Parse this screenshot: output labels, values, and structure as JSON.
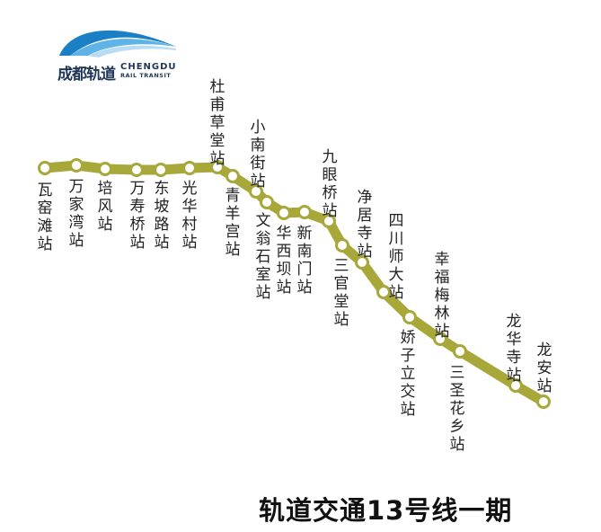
{
  "logo": {
    "cn": "成都轨道",
    "en_line1": "CHENGDU",
    "en_line2": "RAIL TRANSIT"
  },
  "colors": {
    "line": "#a8a83a",
    "station_fill": "#ffffff",
    "logo_blue": "#1a7fc4",
    "logo_text": "#1f3556"
  },
  "title": "轨道交通13号线一期",
  "stations": [
    {
      "name": "瓦窑滩站",
      "label_side": "below"
    },
    {
      "name": "万家湾站",
      "label_side": "below"
    },
    {
      "name": "培风站",
      "label_side": "below"
    },
    {
      "name": "万寿桥站",
      "label_side": "below"
    },
    {
      "name": "东坡路站",
      "label_side": "below"
    },
    {
      "name": "光华村站",
      "label_side": "below"
    },
    {
      "name": "杜甫草堂站",
      "label_side": "above"
    },
    {
      "name": "青羊宫站",
      "label_side": "below"
    },
    {
      "name": "小南街站",
      "label_side": "above"
    },
    {
      "name": "文翁石室站",
      "label_side": "below"
    },
    {
      "name": "华西坝站",
      "label_side": "below"
    },
    {
      "name": "新南门站",
      "label_side": "below"
    },
    {
      "name": "九眼桥站",
      "label_side": "above"
    },
    {
      "name": "三官堂站",
      "label_side": "below"
    },
    {
      "name": "净居寺站",
      "label_side": "above"
    },
    {
      "name": "四川师大站",
      "label_side": "above"
    },
    {
      "name": "娇子立交站",
      "label_side": "below"
    },
    {
      "name": "幸福梅林站",
      "label_side": "above"
    },
    {
      "name": "三圣花乡站",
      "label_side": "below"
    },
    {
      "name": "龙华寺站",
      "label_side": "above"
    },
    {
      "name": "龙安站",
      "label_side": "above"
    }
  ]
}
